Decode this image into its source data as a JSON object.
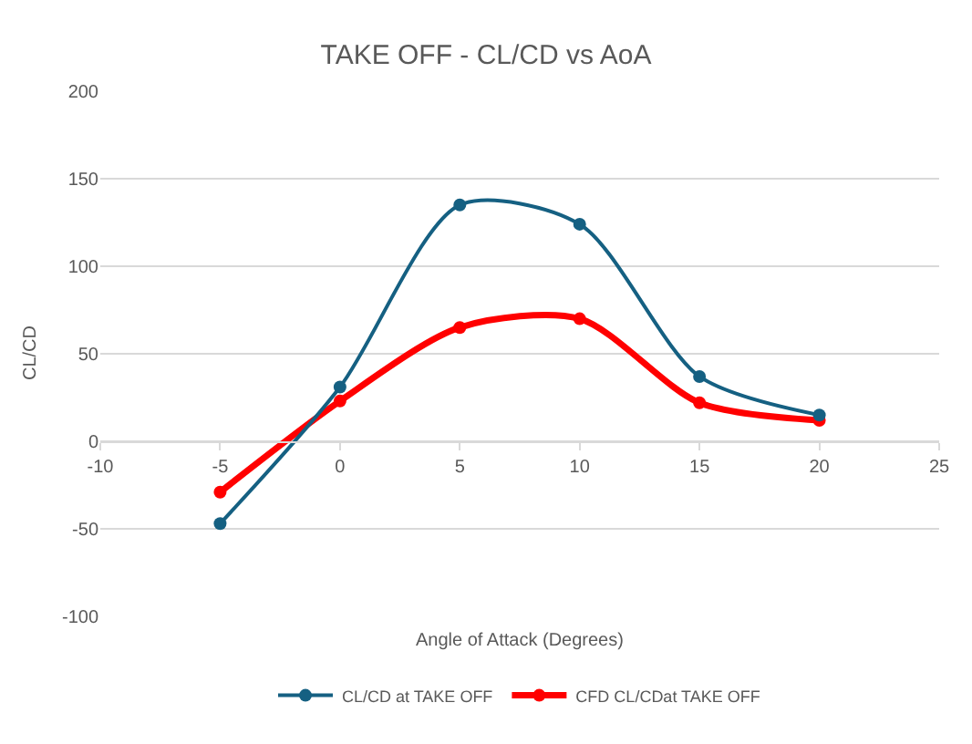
{
  "chart_data": {
    "type": "line",
    "title": "TAKE OFF - CL/CD vs AoA",
    "xlabel": "Angle of Attack (Degrees)",
    "ylabel": "CL/CD",
    "x": [
      -5,
      0,
      5,
      10,
      15,
      20
    ],
    "series": [
      {
        "name": "CL/CD at TAKE OFF",
        "color": "#156082",
        "values": [
          -47,
          31,
          135,
          124,
          37,
          15
        ]
      },
      {
        "name": "CFD CL/CDat TAKE OFF",
        "color": "#ff0000",
        "values": [
          -29,
          23,
          65,
          70,
          22,
          12
        ]
      }
    ],
    "xlim": [
      -10,
      25
    ],
    "xticks": [
      -10,
      -5,
      0,
      5,
      10,
      15,
      20,
      25
    ],
    "ylim": [
      -100,
      200
    ],
    "yticks": [
      -100,
      -50,
      0,
      50,
      100,
      150,
      200
    ],
    "grid": "y",
    "legend": "bottom",
    "marker": "circle",
    "line_style": "solid"
  }
}
